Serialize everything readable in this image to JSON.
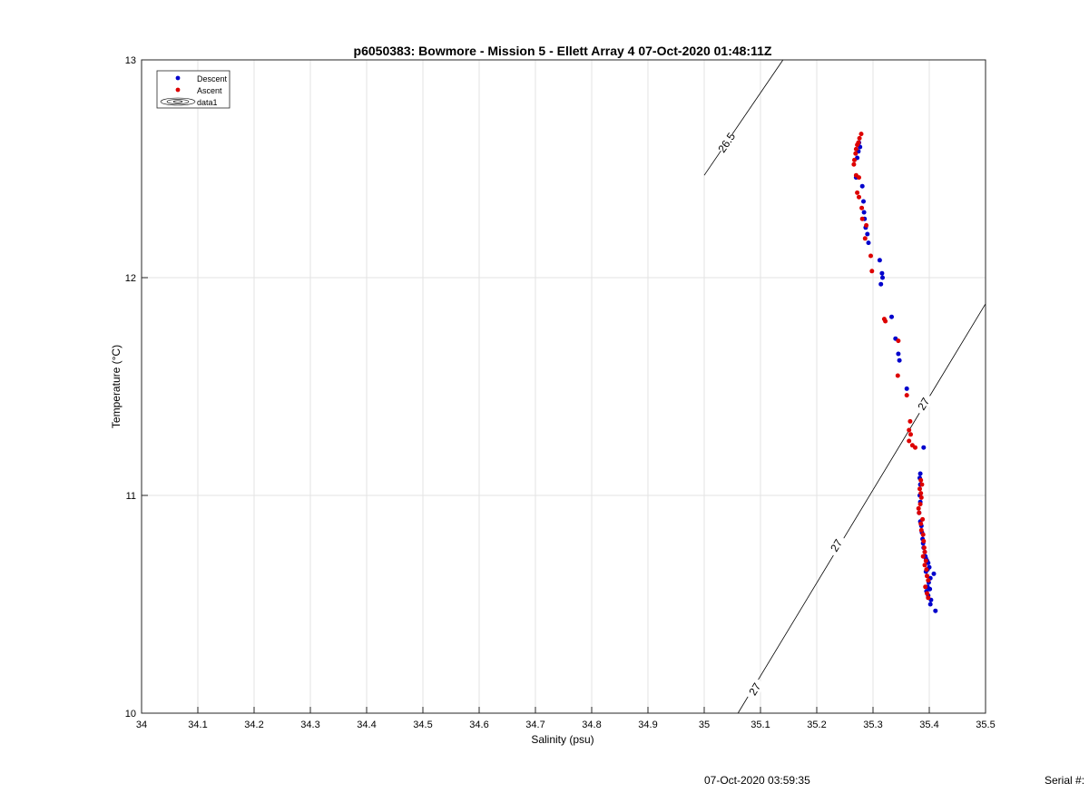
{
  "footer": {
    "timestamp": "07-Oct-2020 03:59:35",
    "serial_label": "Serial #:"
  },
  "chart_data": {
    "type": "scatter",
    "title": "p6050383: Bowmore - Mission 5 - Ellett Array 4 07-Oct-2020 01:48:11Z",
    "xlabel": "Salinity (psu)",
    "ylabel": "Temperature (°C)",
    "xlim": [
      34,
      35.5
    ],
    "ylim": [
      10,
      13
    ],
    "xticks": [
      "34",
      "34.1",
      "34.2",
      "34.3",
      "34.4",
      "34.5",
      "34.6",
      "34.7",
      "34.8",
      "34.9",
      "35",
      "35.1",
      "35.2",
      "35.3",
      "35.4",
      "35.5"
    ],
    "yticks": [
      "10",
      "11",
      "12",
      "13"
    ],
    "grid": true,
    "legend": {
      "placement": "top-left",
      "entries": [
        "Descent",
        "Ascent",
        "data1"
      ]
    },
    "colors": {
      "descent": "#0000cc",
      "ascent": "#dd0000",
      "contour": "#000000"
    },
    "series": [
      {
        "name": "Descent",
        "points": [
          [
            35.275,
            12.62
          ],
          [
            35.277,
            12.6
          ],
          [
            35.274,
            12.58
          ],
          [
            35.272,
            12.55
          ],
          [
            35.27,
            12.46
          ],
          [
            35.281,
            12.42
          ],
          [
            35.283,
            12.35
          ],
          [
            35.284,
            12.3
          ],
          [
            35.285,
            12.27
          ],
          [
            35.287,
            12.23
          ],
          [
            35.29,
            12.2
          ],
          [
            35.292,
            12.16
          ],
          [
            35.312,
            12.08
          ],
          [
            35.316,
            12.02
          ],
          [
            35.317,
            12.0
          ],
          [
            35.314,
            11.97
          ],
          [
            35.333,
            11.82
          ],
          [
            35.34,
            11.72
          ],
          [
            35.345,
            11.65
          ],
          [
            35.347,
            11.62
          ],
          [
            35.36,
            11.49
          ],
          [
            35.39,
            11.22
          ],
          [
            35.384,
            11.1
          ],
          [
            35.383,
            11.08
          ],
          [
            35.384,
            11.05
          ],
          [
            35.383,
            11.0
          ],
          [
            35.384,
            10.97
          ],
          [
            35.382,
            10.92
          ],
          [
            35.384,
            10.88
          ],
          [
            35.386,
            10.86
          ],
          [
            35.387,
            10.83
          ],
          [
            35.388,
            10.8
          ],
          [
            35.389,
            10.78
          ],
          [
            35.39,
            10.76
          ],
          [
            35.392,
            10.74
          ],
          [
            35.393,
            10.72
          ],
          [
            35.394,
            10.71
          ],
          [
            35.396,
            10.7
          ],
          [
            35.398,
            10.69
          ],
          [
            35.4,
            10.67
          ],
          [
            35.397,
            10.66
          ],
          [
            35.394,
            10.65
          ],
          [
            35.408,
            10.64
          ],
          [
            35.402,
            10.62
          ],
          [
            35.399,
            10.6
          ],
          [
            35.397,
            10.58
          ],
          [
            35.401,
            10.57
          ],
          [
            35.395,
            10.56
          ],
          [
            35.398,
            10.54
          ],
          [
            35.403,
            10.52
          ],
          [
            35.402,
            10.5
          ],
          [
            35.411,
            10.47
          ]
        ]
      },
      {
        "name": "Ascent",
        "points": [
          [
            35.279,
            12.66
          ],
          [
            35.276,
            12.64
          ],
          [
            35.274,
            12.62
          ],
          [
            35.272,
            12.61
          ],
          [
            35.27,
            12.59
          ],
          [
            35.269,
            12.57
          ],
          [
            35.267,
            12.54
          ],
          [
            35.266,
            12.52
          ],
          [
            35.27,
            12.47
          ],
          [
            35.275,
            12.46
          ],
          [
            35.272,
            12.39
          ],
          [
            35.275,
            12.37
          ],
          [
            35.28,
            12.32
          ],
          [
            35.281,
            12.27
          ],
          [
            35.288,
            12.24
          ],
          [
            35.286,
            12.18
          ],
          [
            35.296,
            12.1
          ],
          [
            35.298,
            12.03
          ],
          [
            35.32,
            11.81
          ],
          [
            35.322,
            11.8
          ],
          [
            35.345,
            11.71
          ],
          [
            35.344,
            11.55
          ],
          [
            35.36,
            11.46
          ],
          [
            35.366,
            11.34
          ],
          [
            35.364,
            11.3
          ],
          [
            35.367,
            11.28
          ],
          [
            35.364,
            11.25
          ],
          [
            35.37,
            11.23
          ],
          [
            35.375,
            11.22
          ],
          [
            35.385,
            11.07
          ],
          [
            35.387,
            11.05
          ],
          [
            35.383,
            11.03
          ],
          [
            35.385,
            11.01
          ],
          [
            35.386,
            10.99
          ],
          [
            35.384,
            10.96
          ],
          [
            35.381,
            10.94
          ],
          [
            35.382,
            10.92
          ],
          [
            35.388,
            10.89
          ],
          [
            35.385,
            10.87
          ],
          [
            35.386,
            10.84
          ],
          [
            35.389,
            10.82
          ],
          [
            35.39,
            10.79
          ],
          [
            35.391,
            10.76
          ],
          [
            35.392,
            10.74
          ],
          [
            35.389,
            10.72
          ],
          [
            35.394,
            10.7
          ],
          [
            35.392,
            10.68
          ],
          [
            35.395,
            10.66
          ],
          [
            35.396,
            10.63
          ],
          [
            35.398,
            10.61
          ],
          [
            35.393,
            10.58
          ],
          [
            35.396,
            10.55
          ],
          [
            35.398,
            10.53
          ]
        ]
      }
    ],
    "contours": [
      {
        "label": "26.5",
        "points": [
          [
            35.0,
            12.47
          ],
          [
            35.14,
            13.0
          ]
        ],
        "label_positions": [
          [
            35.04,
            12.62
          ]
        ]
      },
      {
        "label": "27",
        "points": [
          [
            35.06,
            10.0
          ],
          [
            35.5,
            11.88
          ]
        ],
        "label_positions": [
          [
            35.09,
            10.11
          ],
          [
            35.235,
            10.77
          ],
          [
            35.39,
            11.42
          ]
        ]
      }
    ]
  }
}
